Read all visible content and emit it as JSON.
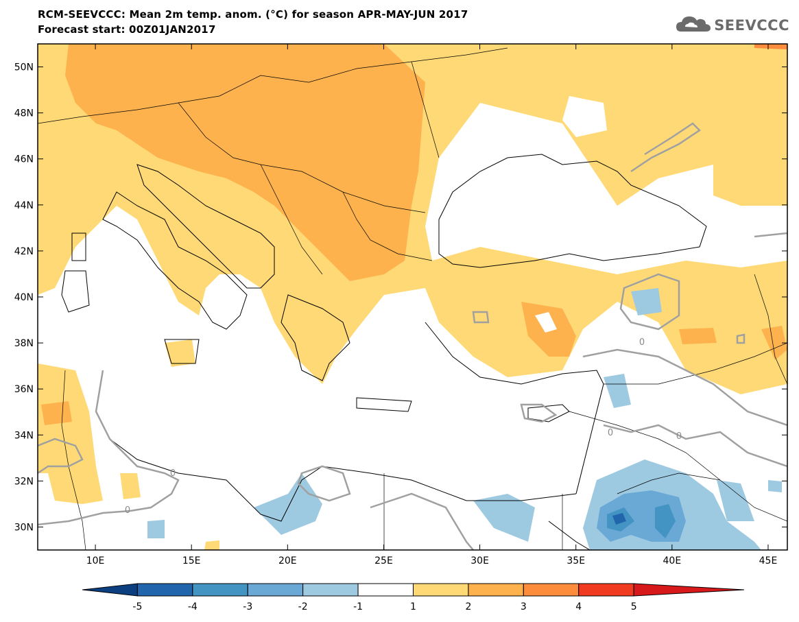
{
  "title": {
    "line1": "RCM-SEEVCCC: Mean 2m temp. anom. (°C) for season APR-MAY-JUN 2017",
    "line2": "Forecast start: 00Z01JAN2017"
  },
  "logo": {
    "text": "SEEVCCC",
    "icon": "cloud-icon",
    "color": "#6b6b6b"
  },
  "map": {
    "lat_labels": [
      "50N",
      "48N",
      "46N",
      "44N",
      "42N",
      "40N",
      "38N",
      "36N",
      "34N",
      "32N",
      "30N"
    ],
    "lat_values": [
      50,
      48,
      46,
      44,
      42,
      40,
      38,
      36,
      34,
      32,
      30
    ],
    "lon_labels": [
      "10E",
      "15E",
      "20E",
      "25E",
      "30E",
      "35E",
      "40E",
      "45E"
    ],
    "lon_values": [
      10,
      15,
      20,
      25,
      30,
      35,
      40,
      45
    ],
    "lon_range": [
      7,
      46
    ],
    "lat_range": [
      29,
      51
    ],
    "contour_label": "0",
    "contour_color": "#a0a0a0"
  },
  "colorbar": {
    "ticks": [
      "-5",
      "-4",
      "-3",
      "-2",
      "-1",
      "1",
      "2",
      "3",
      "4",
      "5"
    ],
    "colors": [
      "#0c3f7f",
      "#2166ac",
      "#4393c3",
      "#6aa8d6",
      "#9ecae1",
      "#ffffff",
      "#fed976",
      "#fdb24d",
      "#fd8d3c",
      "#f03b20",
      "#d7191c"
    ]
  }
}
